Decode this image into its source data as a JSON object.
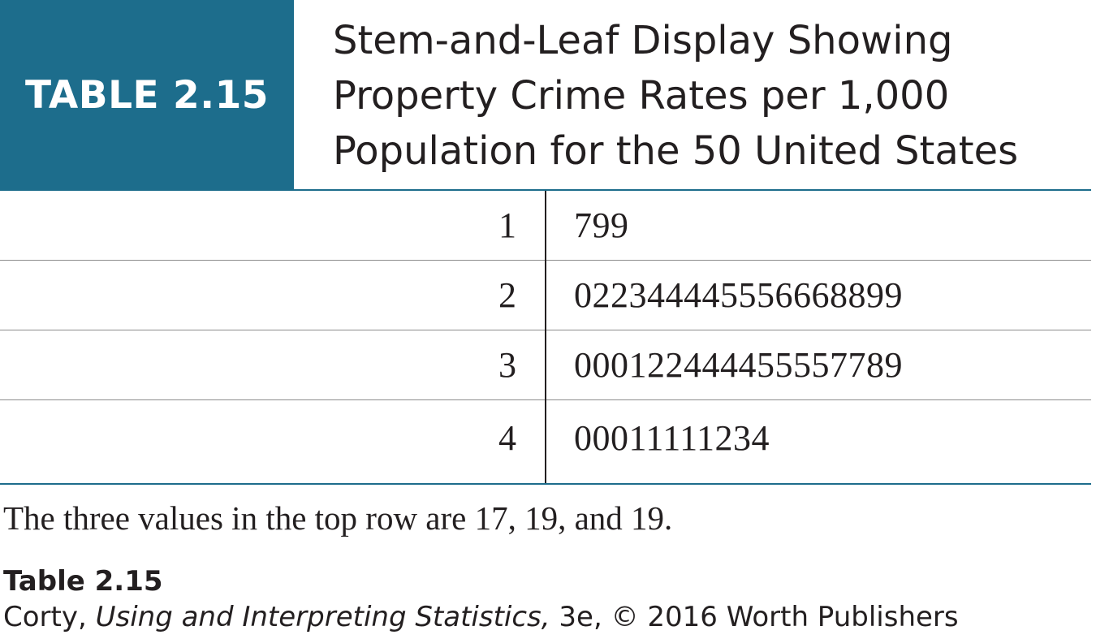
{
  "header": {
    "label": "TABLE 2.15",
    "title_lines": [
      "Stem-and-Leaf Display Showing",
      "Property Crime Rates per 1,000",
      "Population for the 50 United States"
    ]
  },
  "table": {
    "rows": [
      {
        "stem": "1",
        "leaves": "799"
      },
      {
        "stem": "2",
        "leaves": "022344445556668899"
      },
      {
        "stem": "3",
        "leaves": "000122444455557789"
      },
      {
        "stem": "4",
        "leaves": "00011111234"
      }
    ]
  },
  "note": "The three values in the top row are 17, 19, and 19.",
  "caption": {
    "label": "Table 2.15",
    "author": "Corty, ",
    "book_title": "Using and Interpreting Statistics,",
    "rest": " 3e, © 2016 Worth Publishers"
  },
  "colors": {
    "accent": "#1d6d8c",
    "text": "#231f20"
  }
}
